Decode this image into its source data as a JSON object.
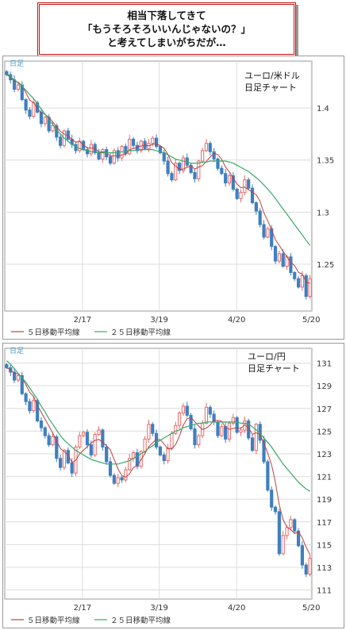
{
  "header": {
    "line1": "相当下落してきて",
    "line2": "「もうそろそろいいんじゃないの？」",
    "line3": "と考えてしまいがちだが…"
  },
  "colors": {
    "up": "#e86a6a",
    "down": "#3f7fbf",
    "ma5": "#c04040",
    "ma25": "#3aa86a",
    "grid": "#dcdcdc",
    "frame": "#9a9a9a"
  },
  "chart_data": [
    {
      "type": "candlestick",
      "corner_label": "日足",
      "title_line1": "ユーロ/米ドル",
      "title_line2": "日足チャート",
      "x_ticks": [
        "2/17",
        "3/19",
        "4/20",
        "5/20"
      ],
      "y_ticks": [
        1.4,
        1.35,
        1.3,
        1.25
      ],
      "ylim": [
        1.205,
        1.445
      ],
      "legend": [
        "５日移動平均線",
        "２５日移動平均線"
      ],
      "close": [
        1.432,
        1.427,
        1.418,
        1.422,
        1.408,
        1.398,
        1.392,
        1.405,
        1.396,
        1.385,
        1.391,
        1.378,
        1.383,
        1.372,
        1.364,
        1.378,
        1.37,
        1.365,
        1.359,
        1.368,
        1.36,
        1.356,
        1.365,
        1.357,
        1.351,
        1.36,
        1.353,
        1.347,
        1.359,
        1.352,
        1.363,
        1.356,
        1.37,
        1.364,
        1.359,
        1.368,
        1.361,
        1.366,
        1.371,
        1.363,
        1.357,
        1.349,
        1.337,
        1.331,
        1.347,
        1.34,
        1.352,
        1.345,
        1.338,
        1.332,
        1.349,
        1.359,
        1.366,
        1.358,
        1.351,
        1.342,
        1.337,
        1.328,
        1.335,
        1.322,
        1.313,
        1.319,
        1.331,
        1.323,
        1.309,
        1.301,
        1.288,
        1.276,
        1.284,
        1.267,
        1.253,
        1.26,
        1.248,
        1.257,
        1.242,
        1.236,
        1.228,
        1.239,
        1.219,
        1.236
      ],
      "ma25": [
        1.433,
        1.43,
        1.427,
        1.424,
        1.421,
        1.417,
        1.413,
        1.409,
        1.404,
        1.399,
        1.394,
        1.389,
        1.384,
        1.379,
        1.375,
        1.371,
        1.368,
        1.365,
        1.363,
        1.361,
        1.36,
        1.359,
        1.358,
        1.358,
        1.357,
        1.357,
        1.357,
        1.357,
        1.357,
        1.357,
        1.358,
        1.358,
        1.359,
        1.359,
        1.36,
        1.36,
        1.36,
        1.36,
        1.36,
        1.359,
        1.358,
        1.357,
        1.355,
        1.353,
        1.351,
        1.35,
        1.349,
        1.348,
        1.347,
        1.347,
        1.347,
        1.348,
        1.348,
        1.349,
        1.349,
        1.349,
        1.349,
        1.349,
        1.348,
        1.347,
        1.345,
        1.343,
        1.341,
        1.339,
        1.336,
        1.333,
        1.33,
        1.326,
        1.322,
        1.318,
        1.313,
        1.308,
        1.303,
        1.298,
        1.293,
        1.288,
        1.283,
        1.278,
        1.273,
        1.268
      ]
    },
    {
      "type": "candlestick",
      "corner_label": "日足",
      "title_line1": "ユーロ/円",
      "title_line2": "日足チャート",
      "x_ticks": [
        "2/17",
        "3/19",
        "4/20",
        "5/20"
      ],
      "y_ticks": [
        131,
        129,
        127,
        125,
        123,
        121,
        119,
        117,
        115,
        113,
        111
      ],
      "ylim": [
        110.2,
        132.3
      ],
      "legend": [
        "５日移動平均線",
        "２５日移動平均線"
      ],
      "close": [
        130.6,
        130.2,
        129.5,
        129.9,
        128.3,
        127.6,
        126.8,
        127.7,
        125.9,
        125.3,
        124.6,
        123.8,
        124.5,
        122.6,
        121.8,
        123.3,
        122.2,
        121.3,
        123.6,
        124.6,
        124.9,
        123.8,
        122.9,
        124.7,
        125.1,
        123.6,
        122.3,
        121.1,
        120.4,
        120.9,
        120.7,
        121.6,
        122.6,
        123.1,
        121.9,
        123.2,
        124.3,
        125.6,
        124.8,
        123.6,
        122.9,
        122.4,
        123.5,
        124.8,
        125.5,
        126.6,
        127.2,
        126.4,
        125.2,
        123.8,
        124.6,
        125.7,
        127.1,
        126.5,
        125.8,
        124.6,
        125.4,
        124.3,
        125.7,
        126.2,
        124.9,
        125.1,
        125.9,
        124.4,
        123.3,
        125.6,
        124.2,
        122.3,
        119.8,
        118.3,
        117.9,
        114.2,
        115.8,
        116.5,
        117.2,
        116.2,
        114.9,
        113.2,
        112.4,
        113.8
      ],
      "ma25": [
        131.2,
        130.9,
        130.5,
        130.1,
        129.7,
        129.3,
        128.8,
        128.3,
        127.8,
        127.2,
        126.7,
        126.1,
        125.6,
        125.1,
        124.6,
        124.2,
        123.9,
        123.6,
        123.3,
        123.1,
        122.9,
        122.7,
        122.5,
        122.4,
        122.3,
        122.2,
        122.1,
        122.1,
        122.1,
        122.1,
        122.2,
        122.3,
        122.4,
        122.6,
        122.8,
        123,
        123.2,
        123.5,
        123.7,
        124,
        124.2,
        124.4,
        124.6,
        124.8,
        125,
        125.1,
        125.3,
        125.4,
        125.5,
        125.6,
        125.7,
        125.7,
        125.8,
        125.8,
        125.8,
        125.8,
        125.8,
        125.8,
        125.8,
        125.8,
        125.8,
        125.7,
        125.7,
        125.6,
        125.4,
        125.1,
        124.8,
        124.4,
        124,
        123.6,
        123.1,
        122.6,
        122.1,
        121.7,
        121.3,
        120.9,
        120.5,
        120.2,
        119.9,
        119.7
      ]
    }
  ]
}
